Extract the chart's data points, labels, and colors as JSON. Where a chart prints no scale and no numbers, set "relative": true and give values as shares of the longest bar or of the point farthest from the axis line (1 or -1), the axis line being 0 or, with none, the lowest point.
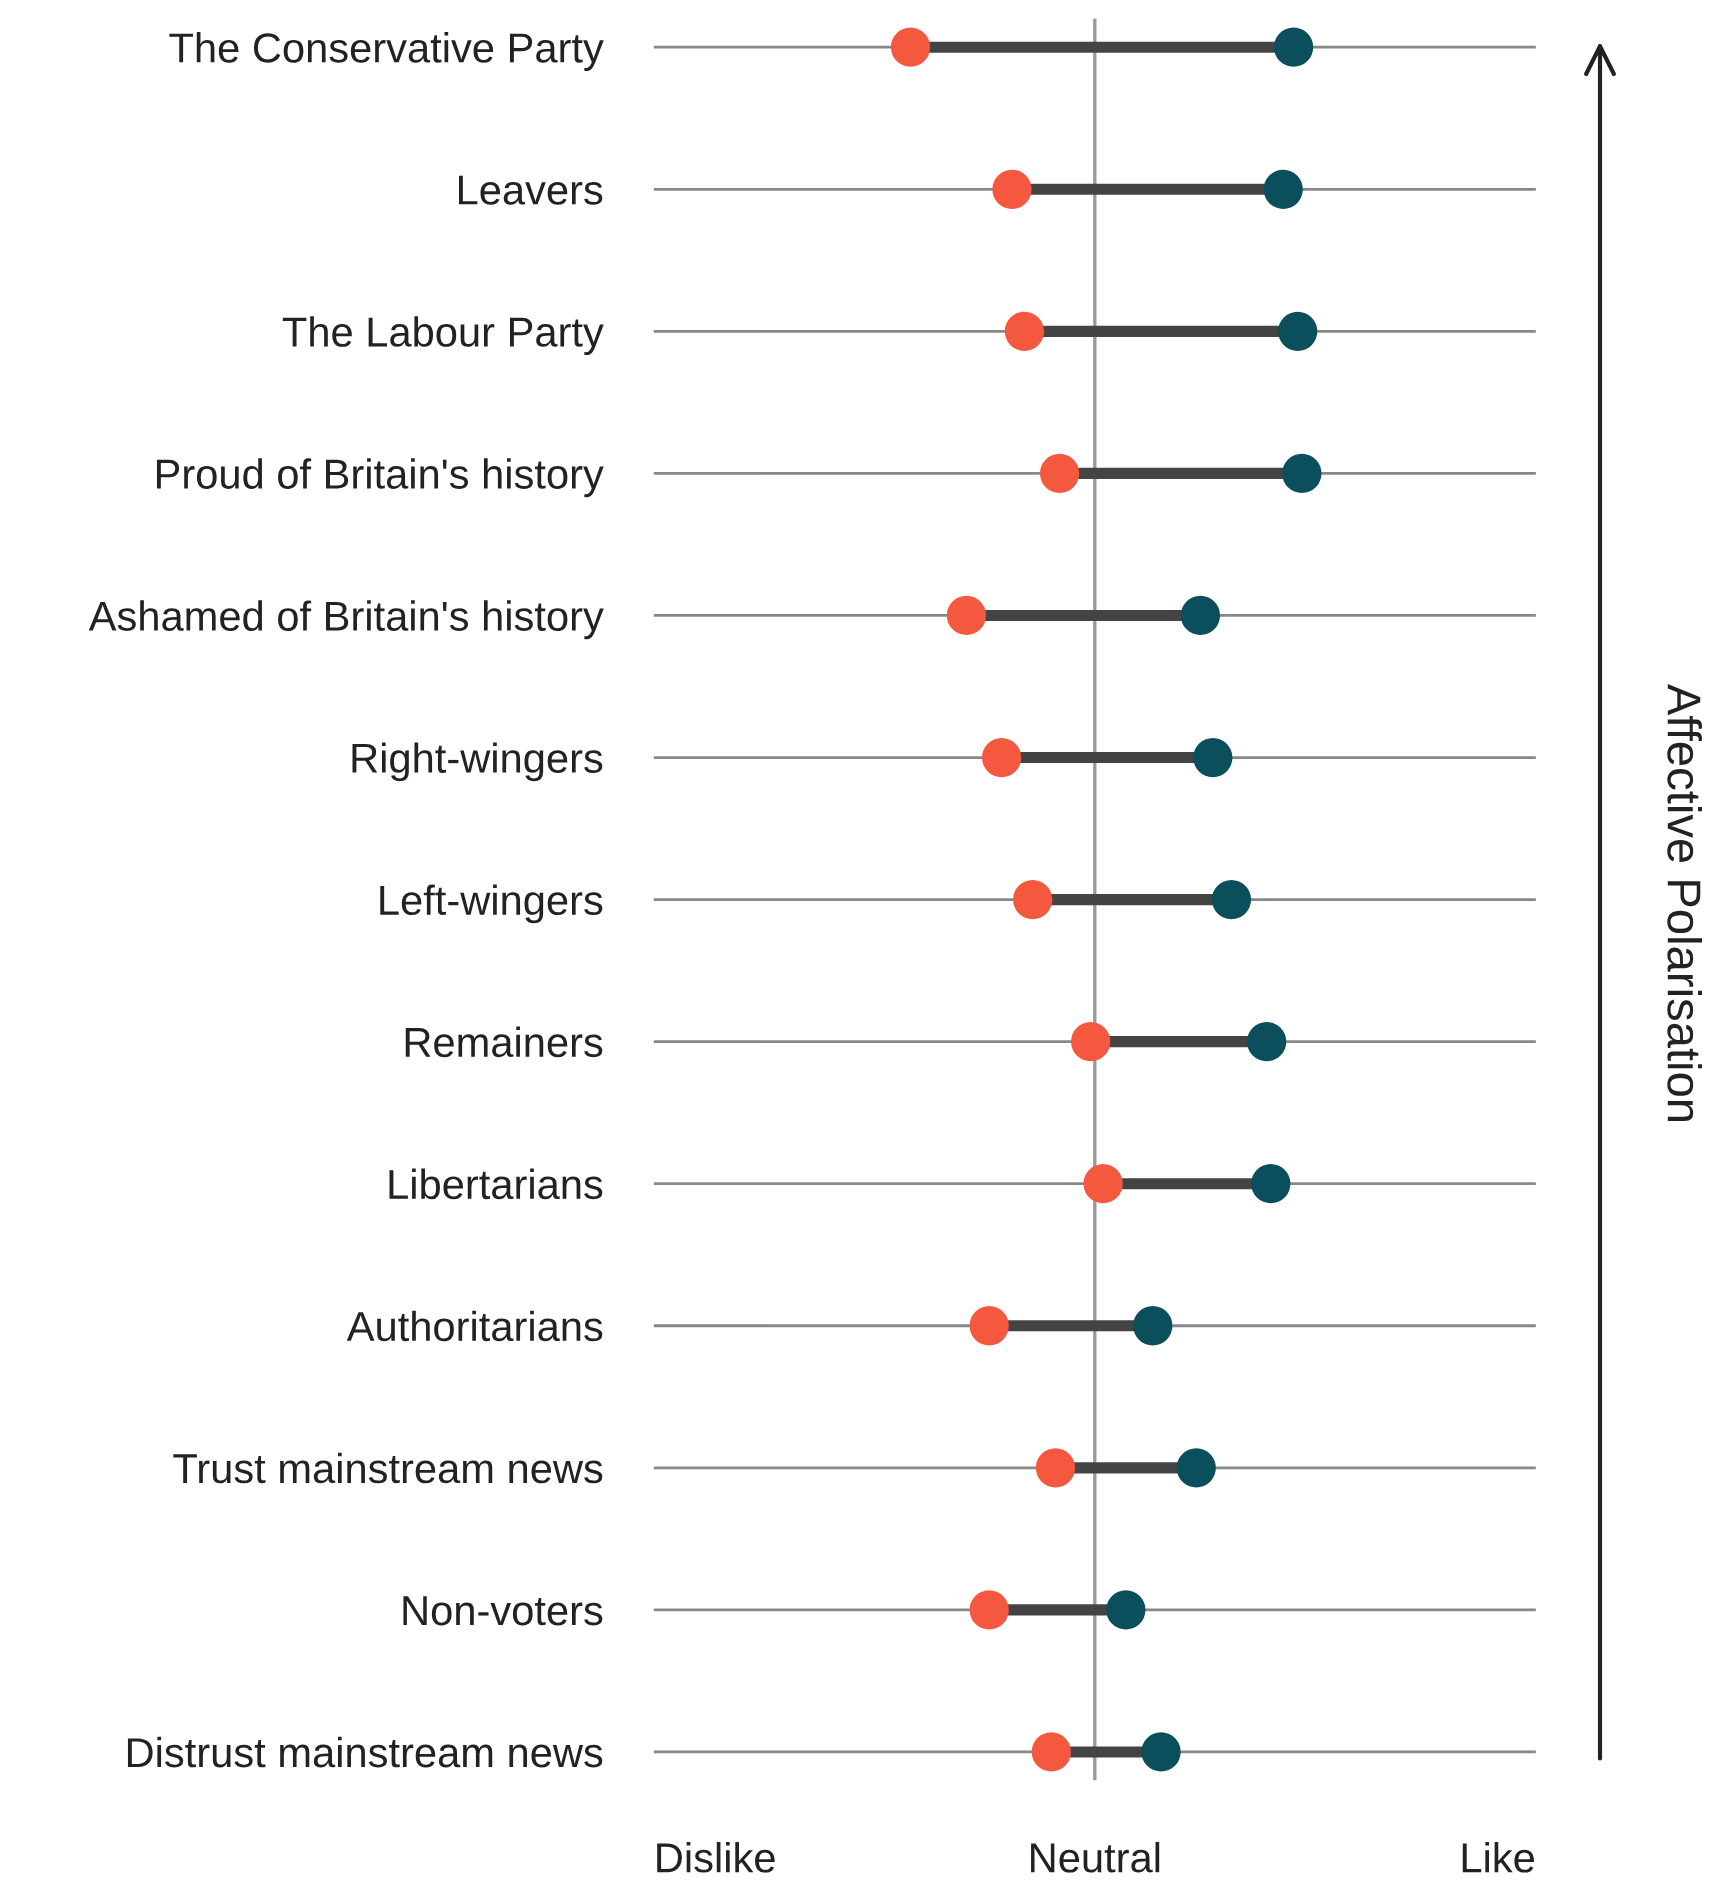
{
  "chart_data": {
    "type": "scatter",
    "categories": [
      "The Conservative Party",
      "Leavers",
      "The Labour Party",
      "Proud of Britain's history",
      "Ashamed of Britain's history",
      "Right-wingers",
      "Left-wingers",
      "Remainers",
      "Libertarians",
      "Authoritarians",
      "Trust mainstream news",
      "Non-voters",
      "Distrust mainstream news"
    ],
    "series": [
      {
        "color": "#f4583f",
        "values": [
          -0.89,
          -0.4,
          -0.34,
          -0.17,
          -0.62,
          -0.45,
          -0.3,
          -0.02,
          0.04,
          -0.51,
          -0.19,
          -0.51,
          -0.21
        ]
      },
      {
        "color": "#0b4f5c",
        "values": [
          0.96,
          0.91,
          0.98,
          1,
          0.51,
          0.57,
          0.66,
          0.83,
          0.85,
          0.28,
          0.49,
          0.15,
          0.32
        ]
      }
    ],
    "relative": true,
    "orientation": "horizontal",
    "ref_lines": [
      {
        "axis": "x",
        "value": 0,
        "label": null,
        "color": "#999999"
      }
    ],
    "grid": "y",
    "marker": "circle",
    "annotations": [
      "Dislike",
      "Neutral",
      "Like",
      "Affective Polarisation"
    ]
  }
}
